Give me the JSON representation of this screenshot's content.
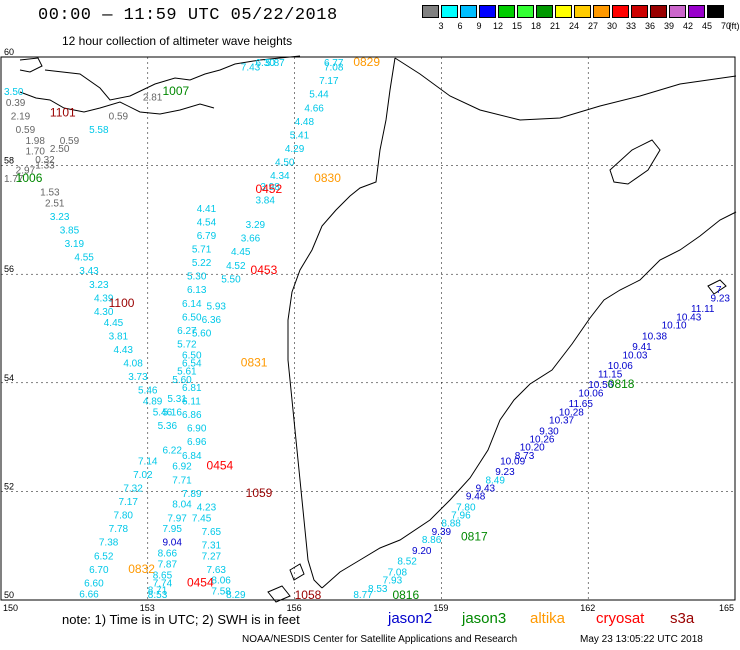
{
  "header": {
    "title": "00:00 — 11:59 UTC 05/22/2018",
    "subtitle": "12 hour collection of altimeter wave heights"
  },
  "legend": {
    "unit": "(ft)",
    "bins": [
      {
        "label": "3",
        "color": "#808080"
      },
      {
        "label": "6",
        "color": "#00ffff"
      },
      {
        "label": "9",
        "color": "#00bfff"
      },
      {
        "label": "12",
        "color": "#0000ff"
      },
      {
        "label": "15",
        "color": "#00cc00"
      },
      {
        "label": "18",
        "color": "#33ff33"
      },
      {
        "label": "21",
        "color": "#009900"
      },
      {
        "label": "24",
        "color": "#ffff00"
      },
      {
        "label": "27",
        "color": "#ffcc00"
      },
      {
        "label": "30",
        "color": "#ff9900"
      },
      {
        "label": "33",
        "color": "#ff0000"
      },
      {
        "label": "36",
        "color": "#cc0000"
      },
      {
        "label": "39",
        "color": "#990000"
      },
      {
        "label": "42",
        "color": "#cc66cc"
      },
      {
        "label": "45",
        "color": "#9900cc"
      },
      {
        "label": "70",
        "color": "#000000"
      }
    ]
  },
  "axes": {
    "lat_labels": [
      "60",
      "58",
      "56",
      "54",
      "52",
      "50"
    ],
    "lon_labels": [
      "150",
      "153",
      "156",
      "159",
      "162",
      "165"
    ],
    "lat_range": [
      50,
      60
    ],
    "lon_range": [
      150,
      165
    ]
  },
  "satellite_colors": {
    "jason2": "#0000cc",
    "jason3": "#008800",
    "altika": "#ff9900",
    "cryosat": "#ff0000",
    "s3a": "#990000",
    "gray": "#666666",
    "cyan": "#00c8e8",
    "blue": "#0000cc"
  },
  "track_labels": [
    {
      "text": "1101",
      "sat": "s3a",
      "lon": 151.0,
      "lat": 58.9
    },
    {
      "text": "1007",
      "sat": "jason3",
      "lon": 153.3,
      "lat": 59.3
    },
    {
      "text": "1006",
      "sat": "jason3",
      "lon": 150.3,
      "lat": 57.7
    },
    {
      "text": "0829",
      "sat": "altika",
      "lon": 157.2,
      "lat": 60.05
    },
    {
      "text": "0452",
      "sat": "cryosat",
      "lon": 155.2,
      "lat": 57.5
    },
    {
      "text": "0830",
      "sat": "altika",
      "lon": 156.4,
      "lat": 57.7
    },
    {
      "text": "0453",
      "sat": "cryosat",
      "lon": 155.1,
      "lat": 56.0
    },
    {
      "text": "1100",
      "sat": "s3a",
      "lon": 152.2,
      "lat": 55.4
    },
    {
      "text": "0831",
      "sat": "altika",
      "lon": 154.9,
      "lat": 54.3
    },
    {
      "text": "0454",
      "sat": "cryosat",
      "lon": 154.2,
      "lat": 52.4
    },
    {
      "text": "1059",
      "sat": "s3a",
      "lon": 155.0,
      "lat": 51.9
    },
    {
      "text": "0832",
      "sat": "altika",
      "lon": 152.6,
      "lat": 50.5
    },
    {
      "text": "0454",
      "sat": "cryosat",
      "lon": 153.8,
      "lat": 50.25
    },
    {
      "text": "1058",
      "sat": "s3a",
      "lon": 156.0,
      "lat": 50.0
    },
    {
      "text": "0816",
      "sat": "jason3",
      "lon": 158.0,
      "lat": 50.0
    },
    {
      "text": "0817",
      "sat": "jason3",
      "lon": 159.4,
      "lat": 51.1
    },
    {
      "text": "0818",
      "sat": "jason3",
      "lon": 162.4,
      "lat": 53.9
    }
  ],
  "readings": [
    {
      "v": "3.50",
      "sat": "cyan",
      "lon": 150.0,
      "lat": 59.3
    },
    {
      "v": "0.39",
      "sat": "gray",
      "lon": 150.1,
      "lat": 59.1
    },
    {
      "v": "2.19",
      "sat": "gray",
      "lon": 150.2,
      "lat": 58.85
    },
    {
      "v": "0.59",
      "sat": "gray",
      "lon": 150.3,
      "lat": 58.6
    },
    {
      "v": "1.98",
      "sat": "gray",
      "lon": 150.5,
      "lat": 58.4
    },
    {
      "v": "1.70",
      "sat": "gray",
      "lon": 150.5,
      "lat": 58.2
    },
    {
      "v": "0.32",
      "sat": "gray",
      "lon": 150.7,
      "lat": 58.05
    },
    {
      "v": "1.33",
      "sat": "gray",
      "lon": 150.7,
      "lat": 57.95
    },
    {
      "v": "2.97",
      "sat": "gray",
      "lon": 150.3,
      "lat": 57.85
    },
    {
      "v": "1.77",
      "sat": "gray",
      "lon": 149.9,
      "lat": 57.7
    },
    {
      "v": "0.59",
      "sat": "gray",
      "lon": 151.2,
      "lat": 58.4
    },
    {
      "v": "2.50",
      "sat": "gray",
      "lon": 151.0,
      "lat": 58.25
    },
    {
      "v": "0.59",
      "sat": "gray",
      "lon": 152.2,
      "lat": 58.85
    },
    {
      "v": "2.81",
      "sat": "gray",
      "lon": 152.9,
      "lat": 59.2
    },
    {
      "v": "5.58",
      "sat": "cyan",
      "lon": 151.8,
      "lat": 58.6
    },
    {
      "v": "1.53",
      "sat": "gray",
      "lon": 150.8,
      "lat": 57.45
    },
    {
      "v": "2.51",
      "sat": "gray",
      "lon": 150.9,
      "lat": 57.25
    },
    {
      "v": "3.23",
      "sat": "cyan",
      "lon": 151.0,
      "lat": 57.0
    },
    {
      "v": "3.85",
      "sat": "cyan",
      "lon": 151.2,
      "lat": 56.75
    },
    {
      "v": "3.19",
      "sat": "cyan",
      "lon": 151.3,
      "lat": 56.5
    },
    {
      "v": "4.55",
      "sat": "cyan",
      "lon": 151.5,
      "lat": 56.25
    },
    {
      "v": "3.43",
      "sat": "cyan",
      "lon": 151.6,
      "lat": 56.0
    },
    {
      "v": "3.23",
      "sat": "cyan",
      "lon": 151.8,
      "lat": 55.75
    },
    {
      "v": "4.39",
      "sat": "cyan",
      "lon": 151.9,
      "lat": 55.5
    },
    {
      "v": "4.30",
      "sat": "cyan",
      "lon": 151.9,
      "lat": 55.25
    },
    {
      "v": "4.45",
      "sat": "cyan",
      "lon": 152.1,
      "lat": 55.05
    },
    {
      "v": "3.81",
      "sat": "cyan",
      "lon": 152.2,
      "lat": 54.8
    },
    {
      "v": "4.43",
      "sat": "cyan",
      "lon": 152.3,
      "lat": 54.55
    },
    {
      "v": "4.08",
      "sat": "cyan",
      "lon": 152.5,
      "lat": 54.3
    },
    {
      "v": "3.73",
      "sat": "cyan",
      "lon": 152.6,
      "lat": 54.05
    },
    {
      "v": "5.46",
      "sat": "cyan",
      "lon": 152.8,
      "lat": 53.8
    },
    {
      "v": "4.89",
      "sat": "cyan",
      "lon": 152.9,
      "lat": 53.6
    },
    {
      "v": "5.46",
      "sat": "cyan",
      "lon": 153.1,
      "lat": 53.4
    },
    {
      "v": "5.36",
      "sat": "cyan",
      "lon": 153.2,
      "lat": 53.15
    },
    {
      "v": "6.22",
      "sat": "cyan",
      "lon": 153.3,
      "lat": 52.7
    },
    {
      "v": "7.14",
      "sat": "cyan",
      "lon": 152.8,
      "lat": 52.5
    },
    {
      "v": "7.02",
      "sat": "cyan",
      "lon": 152.7,
      "lat": 52.25
    },
    {
      "v": "7.32",
      "sat": "cyan",
      "lon": 152.5,
      "lat": 52.0
    },
    {
      "v": "7.17",
      "sat": "cyan",
      "lon": 152.4,
      "lat": 51.75
    },
    {
      "v": "7.80",
      "sat": "cyan",
      "lon": 152.3,
      "lat": 51.5
    },
    {
      "v": "7.78",
      "sat": "cyan",
      "lon": 152.2,
      "lat": 51.25
    },
    {
      "v": "7.38",
      "sat": "cyan",
      "lon": 152.0,
      "lat": 51.0
    },
    {
      "v": "6.52",
      "sat": "cyan",
      "lon": 151.9,
      "lat": 50.75
    },
    {
      "v": "6.70",
      "sat": "cyan",
      "lon": 151.8,
      "lat": 50.5
    },
    {
      "v": "6.60",
      "sat": "cyan",
      "lon": 151.7,
      "lat": 50.25
    },
    {
      "v": "6.66",
      "sat": "cyan",
      "lon": 151.6,
      "lat": 50.05
    },
    {
      "v": "5.87",
      "sat": "cyan",
      "lon": 155.4,
      "lat": 60.0
    },
    {
      "v": "6.30",
      "sat": "cyan",
      "lon": 155.2,
      "lat": 59.85
    },
    {
      "v": "7.43",
      "sat": "cyan",
      "lon": 154.9,
      "lat": 59.75
    },
    {
      "v": "6.77",
      "sat": "cyan",
      "lon": 156.6,
      "lat": 60.0
    },
    {
      "v": "7.08",
      "sat": "cyan",
      "lon": 156.6,
      "lat": 59.75
    },
    {
      "v": "7.17",
      "sat": "cyan",
      "lon": 156.5,
      "lat": 59.5
    },
    {
      "v": "5.44",
      "sat": "cyan",
      "lon": 156.3,
      "lat": 59.25
    },
    {
      "v": "4.66",
      "sat": "cyan",
      "lon": 156.2,
      "lat": 59.0
    },
    {
      "v": "4.48",
      "sat": "cyan",
      "lon": 156.0,
      "lat": 58.75
    },
    {
      "v": "5.41",
      "sat": "cyan",
      "lon": 155.9,
      "lat": 58.5
    },
    {
      "v": "4.29",
      "sat": "cyan",
      "lon": 155.8,
      "lat": 58.25
    },
    {
      "v": "4.50",
      "sat": "cyan",
      "lon": 155.6,
      "lat": 58.0
    },
    {
      "v": "4.34",
      "sat": "cyan",
      "lon": 155.5,
      "lat": 57.75
    },
    {
      "v": "3.98",
      "sat": "cyan",
      "lon": 155.3,
      "lat": 57.55
    },
    {
      "v": "3.84",
      "sat": "cyan",
      "lon": 155.2,
      "lat": 57.3
    },
    {
      "v": "4.41",
      "sat": "cyan",
      "lon": 154.0,
      "lat": 57.15
    },
    {
      "v": "4.54",
      "sat": "cyan",
      "lon": 154.0,
      "lat": 56.9
    },
    {
      "v": "3.29",
      "sat": "cyan",
      "lon": 155.0,
      "lat": 56.85
    },
    {
      "v": "6.79",
      "sat": "cyan",
      "lon": 154.0,
      "lat": 56.65
    },
    {
      "v": "3.66",
      "sat": "cyan",
      "lon": 154.9,
      "lat": 56.6
    },
    {
      "v": "5.71",
      "sat": "cyan",
      "lon": 153.9,
      "lat": 56.4
    },
    {
      "v": "4.45",
      "sat": "cyan",
      "lon": 154.7,
      "lat": 56.35
    },
    {
      "v": "5.22",
      "sat": "cyan",
      "lon": 153.9,
      "lat": 56.15
    },
    {
      "v": "4.52",
      "sat": "cyan",
      "lon": 154.6,
      "lat": 56.1
    },
    {
      "v": "5.30",
      "sat": "cyan",
      "lon": 153.8,
      "lat": 55.9
    },
    {
      "v": "5.50",
      "sat": "cyan",
      "lon": 154.5,
      "lat": 55.85
    },
    {
      "v": "6.13",
      "sat": "cyan",
      "lon": 153.8,
      "lat": 55.65
    },
    {
      "v": "6.14",
      "sat": "cyan",
      "lon": 153.7,
      "lat": 55.4
    },
    {
      "v": "5.93",
      "sat": "cyan",
      "lon": 154.2,
      "lat": 55.35
    },
    {
      "v": "6.50",
      "sat": "cyan",
      "lon": 153.7,
      "lat": 55.15
    },
    {
      "v": "6.36",
      "sat": "cyan",
      "lon": 154.1,
      "lat": 55.1
    },
    {
      "v": "6.27",
      "sat": "cyan",
      "lon": 153.6,
      "lat": 54.9
    },
    {
      "v": "5.60",
      "sat": "cyan",
      "lon": 153.9,
      "lat": 54.85
    },
    {
      "v": "5.72",
      "sat": "cyan",
      "lon": 153.6,
      "lat": 54.65
    },
    {
      "v": "6.50",
      "sat": "cyan",
      "lon": 153.7,
      "lat": 54.45
    },
    {
      "v": "6.54",
      "sat": "cyan",
      "lon": 153.7,
      "lat": 54.3
    },
    {
      "v": "5.61",
      "sat": "cyan",
      "lon": 153.6,
      "lat": 54.15
    },
    {
      "v": "5.60",
      "sat": "cyan",
      "lon": 153.5,
      "lat": 54.0
    },
    {
      "v": "6.81",
      "sat": "cyan",
      "lon": 153.7,
      "lat": 53.85
    },
    {
      "v": "5.31",
      "sat": "cyan",
      "lon": 153.4,
      "lat": 53.65
    },
    {
      "v": "6.11",
      "sat": "cyan",
      "lon": 153.7,
      "lat": 53.6
    },
    {
      "v": "5.16",
      "sat": "cyan",
      "lon": 153.3,
      "lat": 53.4
    },
    {
      "v": "6.86",
      "sat": "cyan",
      "lon": 153.7,
      "lat": 53.35
    },
    {
      "v": "6.90",
      "sat": "cyan",
      "lon": 153.8,
      "lat": 53.1
    },
    {
      "v": "6.96",
      "sat": "cyan",
      "lon": 153.8,
      "lat": 52.85
    },
    {
      "v": "6.84",
      "sat": "cyan",
      "lon": 153.7,
      "lat": 52.6
    },
    {
      "v": "6.92",
      "sat": "cyan",
      "lon": 153.5,
      "lat": 52.4
    },
    {
      "v": "7.71",
      "sat": "cyan",
      "lon": 153.5,
      "lat": 52.15
    },
    {
      "v": "7.89",
      "sat": "cyan",
      "lon": 153.7,
      "lat": 51.9
    },
    {
      "v": "8.04",
      "sat": "cyan",
      "lon": 153.5,
      "lat": 51.7
    },
    {
      "v": "4.23",
      "sat": "cyan",
      "lon": 154.0,
      "lat": 51.65
    },
    {
      "v": "7.97",
      "sat": "cyan",
      "lon": 153.4,
      "lat": 51.45
    },
    {
      "v": "7.45",
      "sat": "cyan",
      "lon": 153.9,
      "lat": 51.45
    },
    {
      "v": "7.95",
      "sat": "cyan",
      "lon": 153.3,
      "lat": 51.25
    },
    {
      "v": "7.65",
      "sat": "cyan",
      "lon": 154.1,
      "lat": 51.2
    },
    {
      "v": "9.04",
      "sat": "blue",
      "lon": 153.3,
      "lat": 51.0
    },
    {
      "v": "7.31",
      "sat": "cyan",
      "lon": 154.1,
      "lat": 50.95
    },
    {
      "v": "8.66",
      "sat": "cyan",
      "lon": 153.2,
      "lat": 50.8
    },
    {
      "v": "7.27",
      "sat": "cyan",
      "lon": 154.1,
      "lat": 50.75
    },
    {
      "v": "7.87",
      "sat": "cyan",
      "lon": 153.2,
      "lat": 50.6
    },
    {
      "v": "7.63",
      "sat": "cyan",
      "lon": 154.2,
      "lat": 50.5
    },
    {
      "v": "8.65",
      "sat": "cyan",
      "lon": 153.1,
      "lat": 50.4
    },
    {
      "v": "8.06",
      "sat": "cyan",
      "lon": 154.3,
      "lat": 50.3
    },
    {
      "v": "7.74",
      "sat": "cyan",
      "lon": 153.1,
      "lat": 50.25
    },
    {
      "v": "7.58",
      "sat": "cyan",
      "lon": 154.3,
      "lat": 50.1
    },
    {
      "v": "8.71",
      "sat": "cyan",
      "lon": 153.0,
      "lat": 50.12
    },
    {
      "v": "8.53",
      "sat": "cyan",
      "lon": 153.0,
      "lat": 50.0
    },
    {
      "v": "8.29",
      "sat": "cyan",
      "lon": 154.6,
      "lat": 50.0
    },
    {
      "v": "8.77",
      "sat": "cyan",
      "lon": 157.2,
      "lat": 50.0
    },
    {
      "v": "8.53",
      "sat": "cyan",
      "lon": 157.5,
      "lat": 50.15
    },
    {
      "v": "7.93",
      "sat": "cyan",
      "lon": 157.8,
      "lat": 50.3
    },
    {
      "v": "7.08",
      "sat": "cyan",
      "lon": 157.9,
      "lat": 50.45
    },
    {
      "v": "8.52",
      "sat": "cyan",
      "lon": 158.1,
      "lat": 50.65
    },
    {
      "v": "9.20",
      "sat": "blue",
      "lon": 158.4,
      "lat": 50.85
    },
    {
      "v": "8.86",
      "sat": "cyan",
      "lon": 158.6,
      "lat": 51.05
    },
    {
      "v": "9.39",
      "sat": "blue",
      "lon": 158.8,
      "lat": 51.2
    },
    {
      "v": "8.88",
      "sat": "cyan",
      "lon": 159.0,
      "lat": 51.35
    },
    {
      "v": "7.96",
      "sat": "cyan",
      "lon": 159.2,
      "lat": 51.5
    },
    {
      "v": "7.80",
      "sat": "cyan",
      "lon": 159.3,
      "lat": 51.65
    },
    {
      "v": "9.48",
      "sat": "blue",
      "lon": 159.5,
      "lat": 51.85
    },
    {
      "v": "9.43",
      "sat": "blue",
      "lon": 159.7,
      "lat": 52.0
    },
    {
      "v": "8.49",
      "sat": "cyan",
      "lon": 159.9,
      "lat": 52.15
    },
    {
      "v": "9.23",
      "sat": "blue",
      "lon": 160.1,
      "lat": 52.3
    },
    {
      "v": "10.09",
      "sat": "blue",
      "lon": 160.2,
      "lat": 52.5
    },
    {
      "v": "8.73",
      "sat": "blue",
      "lon": 160.5,
      "lat": 52.6
    },
    {
      "v": "10.20",
      "sat": "blue",
      "lon": 160.6,
      "lat": 52.75
    },
    {
      "v": "10.26",
      "sat": "blue",
      "lon": 160.8,
      "lat": 52.9
    },
    {
      "v": "9.30",
      "sat": "blue",
      "lon": 161.0,
      "lat": 53.05
    },
    {
      "v": "10.37",
      "sat": "blue",
      "lon": 161.2,
      "lat": 53.25
    },
    {
      "v": "10.28",
      "sat": "blue",
      "lon": 161.4,
      "lat": 53.4
    },
    {
      "v": "11.65",
      "sat": "blue",
      "lon": 161.6,
      "lat": 53.55
    },
    {
      "v": "10.06",
      "sat": "blue",
      "lon": 161.8,
      "lat": 53.75
    },
    {
      "v": "10.56",
      "sat": "blue",
      "lon": 162.0,
      "lat": 53.9
    },
    {
      "v": "11.15",
      "sat": "blue",
      "lon": 162.2,
      "lat": 54.1
    },
    {
      "v": "10.06",
      "sat": "blue",
      "lon": 162.4,
      "lat": 54.25
    },
    {
      "v": "10.03",
      "sat": "blue",
      "lon": 162.7,
      "lat": 54.45
    },
    {
      "v": "9.41",
      "sat": "blue",
      "lon": 162.9,
      "lat": 54.6
    },
    {
      "v": "10.38",
      "sat": "blue",
      "lon": 163.1,
      "lat": 54.8
    },
    {
      "v": "10.10",
      "sat": "blue",
      "lon": 163.5,
      "lat": 55.0
    },
    {
      "v": "10.43",
      "sat": "blue",
      "lon": 163.8,
      "lat": 55.15
    },
    {
      "v": "11.11",
      "sat": "blue",
      "lon": 164.1,
      "lat": 55.3
    },
    {
      "v": "9.23",
      "sat": "blue",
      "lon": 164.5,
      "lat": 55.5
    },
    {
      "v": "7",
      "sat": "blue",
      "lon": 164.8,
      "lat": 55.65
    }
  ],
  "footer": {
    "note": "note:  1) Time is in UTC;  2) SWH is in feet",
    "sat_names": [
      {
        "label": "jason2",
        "sat": "jason2"
      },
      {
        "label": "jason3",
        "sat": "jason3"
      },
      {
        "label": "altika",
        "sat": "altika"
      },
      {
        "label": "cryosat",
        "sat": "cryosat"
      },
      {
        "label": "s3a",
        "sat": "s3a"
      }
    ],
    "credit": "NOAA/NESDIS Center for Satellite Applications and Research",
    "timestamp": "May 23 13:05:22 UTC 2018"
  }
}
